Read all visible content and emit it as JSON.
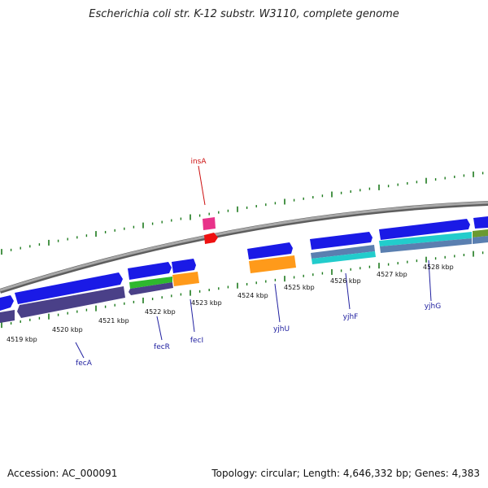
{
  "title": "Escherichia coli str. K-12 substr. W3110, complete genome",
  "footer": {
    "accession": "Accession: AC_000091",
    "summary": "Topology: circular; Length: 4,646,332 bp; Genes: 4,383"
  },
  "colors": {
    "forward_gene": "#1a1ae6",
    "reverse_gene": "#4a4088",
    "tick": "#1c7a1c",
    "backbone": "#888888",
    "gene_label": "#2020a0",
    "insertion_label": "#cc1111"
  },
  "scale": {
    "labels": [
      {
        "text": "4519 kbp"
      },
      {
        "text": "4520 kbp"
      },
      {
        "text": "4521 kbp"
      },
      {
        "text": "4522 kbp"
      },
      {
        "text": "4523 kbp"
      },
      {
        "text": "4524 kbp"
      },
      {
        "text": "4525 kbp"
      },
      {
        "text": "4526 kbp"
      },
      {
        "text": "4527 kbp"
      },
      {
        "text": "4528 kbp"
      }
    ]
  },
  "gene_labels": [
    {
      "text": "insA",
      "kind": "insertion"
    },
    {
      "text": "fecA",
      "kind": "gene"
    },
    {
      "text": "fecR",
      "kind": "gene"
    },
    {
      "text": "fecI",
      "kind": "gene"
    },
    {
      "text": "yjhU",
      "kind": "gene"
    },
    {
      "text": "yjhF",
      "kind": "gene"
    },
    {
      "text": "yjhG",
      "kind": "gene"
    }
  ]
}
